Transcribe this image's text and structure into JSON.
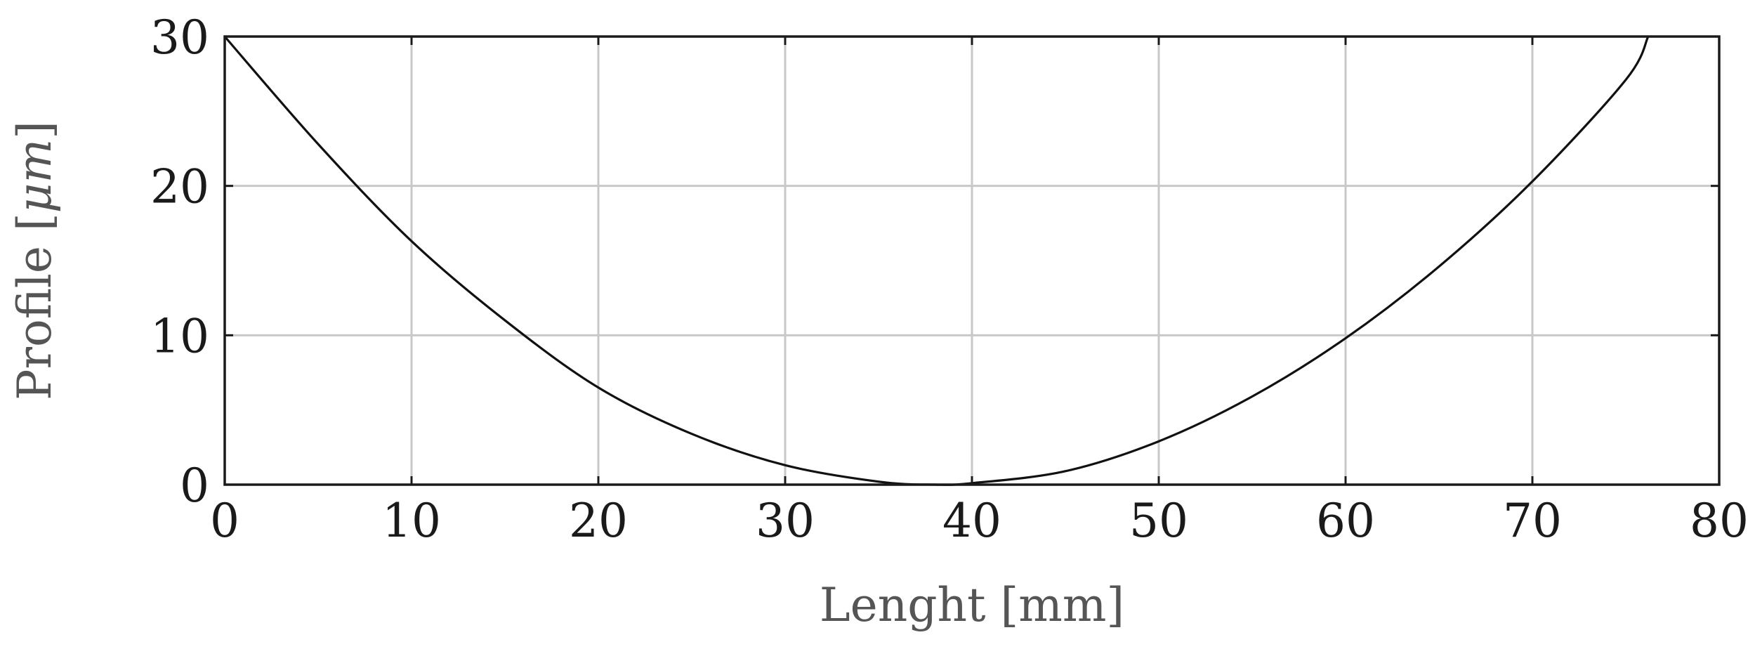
{
  "chart_data": {
    "type": "line",
    "title": "",
    "xlabel": "Lenght [mm]",
    "ylabel_prefix": "Profile [",
    "ylabel_unit": "μm",
    "ylabel_suffix": "]",
    "xlim": [
      0,
      80
    ],
    "ylim": [
      0,
      30
    ],
    "x_ticks": [
      "0",
      "10",
      "20",
      "30",
      "40",
      "50",
      "60",
      "70",
      "80"
    ],
    "y_ticks": [
      "0",
      "10",
      "20",
      "30"
    ],
    "grid": true,
    "legend": "none",
    "series": [
      {
        "color": "#111111",
        "x": [
          0,
          5,
          10,
          15,
          20,
          25,
          30,
          35,
          38,
          40,
          45,
          50,
          55,
          60,
          65,
          70,
          75,
          76.2
        ],
        "y": [
          30,
          22.8,
          16.3,
          11.0,
          6.5,
          3.4,
          1.3,
          0.2,
          0,
          0.1,
          0.9,
          2.9,
          5.9,
          9.8,
          14.6,
          20.3,
          27.1,
          30
        ]
      }
    ]
  }
}
